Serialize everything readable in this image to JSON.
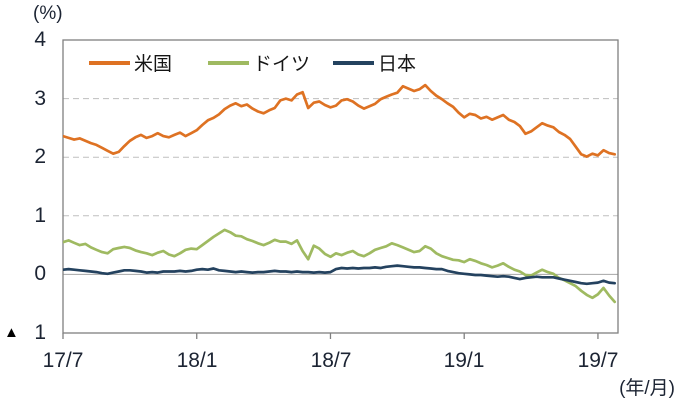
{
  "chart_data": {
    "type": "line",
    "title": "",
    "y_axis_unit": "(%)",
    "x_axis_unit": "(年/月)",
    "ylim": [
      -1,
      4
    ],
    "y_ticks": [
      4,
      3,
      2,
      1,
      0,
      -1
    ],
    "y_tick_labels": [
      "4",
      "3",
      "2",
      "1",
      "0",
      "1"
    ],
    "negative_marker": "▲",
    "x_tick_labels": [
      "17/7",
      "18/1",
      "18/7",
      "19/1",
      "19/7"
    ],
    "x_tick_months": [
      0,
      6,
      12,
      18,
      24
    ],
    "x_range_months": [
      0,
      24.9
    ],
    "t_step_months": 0.25,
    "x_unit": "months since 2017/7",
    "grid": "horizontal dashed at 1,2,3; solid at 0",
    "legend_position": "top-inside",
    "frame_color": "#808080",
    "gridline_color": "#bfbfbf",
    "zeroline_color": "#a6a6a6",
    "series": [
      {
        "name": "米国",
        "color": "#DE7223",
        "values": [
          2.36,
          2.33,
          2.3,
          2.32,
          2.28,
          2.24,
          2.21,
          2.16,
          2.11,
          2.06,
          2.09,
          2.19,
          2.28,
          2.34,
          2.38,
          2.33,
          2.36,
          2.41,
          2.36,
          2.34,
          2.38,
          2.42,
          2.36,
          2.41,
          2.46,
          2.55,
          2.63,
          2.67,
          2.73,
          2.82,
          2.88,
          2.92,
          2.87,
          2.9,
          2.83,
          2.78,
          2.75,
          2.8,
          2.84,
          2.97,
          3.0,
          2.97,
          3.07,
          3.11,
          2.84,
          2.93,
          2.95,
          2.89,
          2.85,
          2.88,
          2.97,
          2.99,
          2.95,
          2.88,
          2.83,
          2.87,
          2.91,
          2.99,
          3.03,
          3.07,
          3.1,
          3.21,
          3.17,
          3.13,
          3.16,
          3.23,
          3.13,
          3.05,
          2.99,
          2.92,
          2.86,
          2.76,
          2.68,
          2.74,
          2.72,
          2.66,
          2.69,
          2.64,
          2.68,
          2.72,
          2.64,
          2.6,
          2.53,
          2.4,
          2.44,
          2.51,
          2.58,
          2.54,
          2.51,
          2.43,
          2.38,
          2.31,
          2.18,
          2.05,
          2.01,
          2.06,
          2.03,
          2.12,
          2.07,
          2.05
        ]
      },
      {
        "name": "ドイツ",
        "color": "#9FBA61",
        "values": [
          0.55,
          0.58,
          0.54,
          0.5,
          0.52,
          0.46,
          0.42,
          0.38,
          0.36,
          0.43,
          0.45,
          0.47,
          0.45,
          0.41,
          0.38,
          0.36,
          0.33,
          0.37,
          0.4,
          0.34,
          0.31,
          0.36,
          0.42,
          0.44,
          0.43,
          0.5,
          0.57,
          0.64,
          0.7,
          0.76,
          0.72,
          0.66,
          0.65,
          0.6,
          0.57,
          0.53,
          0.5,
          0.54,
          0.59,
          0.56,
          0.56,
          0.52,
          0.58,
          0.4,
          0.26,
          0.49,
          0.44,
          0.35,
          0.3,
          0.36,
          0.33,
          0.37,
          0.4,
          0.34,
          0.31,
          0.36,
          0.42,
          0.45,
          0.48,
          0.53,
          0.5,
          0.46,
          0.42,
          0.38,
          0.4,
          0.48,
          0.44,
          0.36,
          0.31,
          0.28,
          0.25,
          0.24,
          0.21,
          0.26,
          0.23,
          0.19,
          0.16,
          0.12,
          0.15,
          0.19,
          0.13,
          0.08,
          0.05,
          -0.01,
          -0.02,
          0.03,
          0.08,
          0.04,
          0.01,
          -0.06,
          -0.1,
          -0.15,
          -0.2,
          -0.28,
          -0.35,
          -0.4,
          -0.34,
          -0.23,
          -0.36,
          -0.47
        ]
      },
      {
        "name": "日本",
        "color": "#24425F",
        "values": [
          0.08,
          0.09,
          0.08,
          0.07,
          0.06,
          0.05,
          0.04,
          0.02,
          0.01,
          0.03,
          0.05,
          0.07,
          0.07,
          0.06,
          0.05,
          0.03,
          0.04,
          0.03,
          0.05,
          0.05,
          0.05,
          0.06,
          0.05,
          0.06,
          0.08,
          0.09,
          0.08,
          0.1,
          0.07,
          0.06,
          0.05,
          0.04,
          0.05,
          0.04,
          0.03,
          0.04,
          0.04,
          0.05,
          0.06,
          0.05,
          0.05,
          0.04,
          0.05,
          0.04,
          0.04,
          0.03,
          0.04,
          0.03,
          0.04,
          0.09,
          0.11,
          0.1,
          0.11,
          0.1,
          0.11,
          0.11,
          0.12,
          0.11,
          0.13,
          0.14,
          0.15,
          0.14,
          0.13,
          0.12,
          0.12,
          0.11,
          0.1,
          0.09,
          0.09,
          0.06,
          0.04,
          0.02,
          0.01,
          0.0,
          -0.01,
          -0.01,
          -0.02,
          -0.03,
          -0.04,
          -0.03,
          -0.04,
          -0.06,
          -0.08,
          -0.06,
          -0.05,
          -0.04,
          -0.05,
          -0.05,
          -0.05,
          -0.07,
          -0.09,
          -0.11,
          -0.13,
          -0.15,
          -0.16,
          -0.15,
          -0.14,
          -0.11,
          -0.14,
          -0.15
        ]
      }
    ]
  }
}
